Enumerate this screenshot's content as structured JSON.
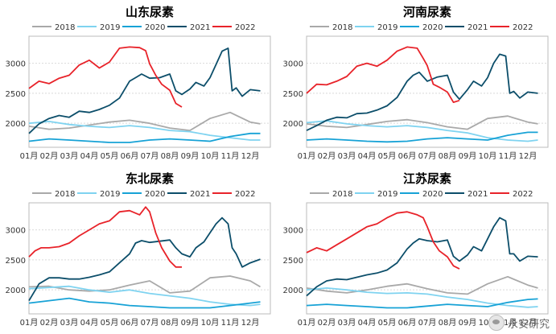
{
  "months": [
    "01月",
    "02月",
    "03月",
    "04月",
    "05月",
    "06月",
    "07月",
    "08月",
    "09月",
    "10月",
    "11月",
    "12月"
  ],
  "legend": [
    "2018",
    "2019",
    "2020",
    "2021",
    "2022"
  ],
  "colors": {
    "2018": "#a9a9a9",
    "2019": "#7fd3f0",
    "2020": "#17a2d6",
    "2021": "#0c4e6a",
    "2022": "#e8232a"
  },
  "watermark": "永安研究",
  "chart_data": [
    {
      "type": "line",
      "title": "山东尿素",
      "ylim": [
        1600,
        3450
      ],
      "yticks": [
        2000,
        2500,
        3000
      ],
      "series": [
        {
          "name": "2018",
          "x": [
            0,
            1,
            2,
            3,
            4,
            5,
            6,
            7,
            8,
            9,
            10,
            11,
            11.5
          ],
          "values": [
            1950,
            1900,
            1920,
            1970,
            2020,
            2050,
            2000,
            1920,
            1880,
            2080,
            2180,
            2020,
            1990
          ]
        },
        {
          "name": "2019",
          "x": [
            0,
            1,
            2,
            3,
            4,
            5,
            6,
            7,
            8,
            9,
            10,
            11,
            11.5
          ],
          "values": [
            2000,
            2030,
            1980,
            1950,
            1930,
            1960,
            1930,
            1880,
            1860,
            1800,
            1760,
            1720,
            1720
          ]
        },
        {
          "name": "2020",
          "x": [
            0,
            1,
            2,
            3,
            4,
            5,
            6,
            7,
            8,
            9,
            10,
            11,
            11.5
          ],
          "values": [
            1700,
            1740,
            1720,
            1700,
            1680,
            1680,
            1720,
            1740,
            1720,
            1700,
            1780,
            1830,
            1830
          ]
        },
        {
          "name": "2021",
          "x": [
            0,
            0.5,
            1,
            1.5,
            2,
            2.5,
            3,
            3.5,
            4,
            4.5,
            5,
            5.3,
            5.6,
            6,
            6.5,
            7,
            7.3,
            7.6,
            8,
            8.3,
            8.7,
            9,
            9.3,
            9.6,
            9.9,
            10.1,
            10.3,
            10.6,
            11,
            11.5
          ],
          "values": [
            1830,
            1990,
            2080,
            2130,
            2100,
            2200,
            2180,
            2230,
            2300,
            2420,
            2700,
            2760,
            2820,
            2750,
            2760,
            2820,
            2540,
            2480,
            2570,
            2680,
            2620,
            2760,
            2980,
            3200,
            3250,
            2540,
            2590,
            2450,
            2560,
            2540
          ]
        },
        {
          "name": "2022",
          "x": [
            0,
            0.5,
            1,
            1.5,
            2,
            2.5,
            3,
            3.5,
            4,
            4.5,
            5,
            5.5,
            5.8,
            6,
            6.3,
            6.6,
            7,
            7.3,
            7.6
          ],
          "values": [
            2580,
            2700,
            2660,
            2750,
            2800,
            2970,
            3050,
            2920,
            3020,
            3250,
            3270,
            3260,
            3210,
            2990,
            2800,
            2650,
            2550,
            2330,
            2270
          ]
        }
      ]
    },
    {
      "type": "line",
      "title": "河南尿素",
      "ylim": [
        1600,
        3450
      ],
      "yticks": [
        2000,
        2500,
        3000
      ],
      "series": [
        {
          "name": "2018",
          "x": [
            0,
            1,
            2,
            3,
            4,
            5,
            6,
            7,
            8,
            9,
            10,
            11,
            11.5
          ],
          "values": [
            1990,
            1950,
            1930,
            1980,
            2030,
            2060,
            2010,
            1940,
            1900,
            2080,
            2120,
            2020,
            1990
          ]
        },
        {
          "name": "2019",
          "x": [
            0,
            1,
            2,
            3,
            4,
            5,
            6,
            7,
            8,
            9,
            10,
            11,
            11.5
          ],
          "values": [
            2010,
            2040,
            1990,
            1960,
            1940,
            1960,
            1930,
            1880,
            1840,
            1760,
            1720,
            1700,
            1720
          ]
        },
        {
          "name": "2020",
          "x": [
            0,
            1,
            2,
            3,
            4,
            5,
            6,
            7,
            8,
            9,
            10,
            11,
            11.5
          ],
          "values": [
            1720,
            1740,
            1720,
            1700,
            1690,
            1700,
            1740,
            1760,
            1740,
            1720,
            1800,
            1850,
            1850
          ]
        },
        {
          "name": "2021",
          "x": [
            0,
            0.5,
            1,
            1.5,
            2,
            2.5,
            3,
            3.5,
            4,
            4.5,
            5,
            5.3,
            5.6,
            6,
            6.5,
            7,
            7.3,
            7.6,
            8,
            8.3,
            8.7,
            9,
            9.3,
            9.6,
            9.9,
            10.1,
            10.3,
            10.6,
            11,
            11.5
          ],
          "values": [
            1880,
            1960,
            2050,
            2100,
            2090,
            2160,
            2170,
            2220,
            2290,
            2430,
            2700,
            2800,
            2850,
            2700,
            2770,
            2800,
            2520,
            2400,
            2560,
            2700,
            2620,
            2760,
            3000,
            3150,
            3120,
            2500,
            2530,
            2420,
            2520,
            2500
          ]
        },
        {
          "name": "2022",
          "x": [
            0,
            0.5,
            1,
            1.5,
            2,
            2.5,
            3,
            3.5,
            4,
            4.5,
            5,
            5.5,
            5.8,
            6,
            6.3,
            6.6,
            7,
            7.3,
            7.6
          ],
          "values": [
            2500,
            2650,
            2640,
            2700,
            2780,
            2950,
            3000,
            2950,
            3050,
            3200,
            3270,
            3250,
            3080,
            2960,
            2650,
            2600,
            2520,
            2350,
            2380
          ]
        }
      ]
    },
    {
      "type": "line",
      "title": "东北尿素",
      "ylim": [
        1600,
        3450
      ],
      "yticks": [
        2000,
        2500,
        3000
      ],
      "series": [
        {
          "name": "2018",
          "x": [
            0,
            1,
            2,
            3,
            4,
            5,
            6,
            7,
            8,
            9,
            10,
            11,
            11.5
          ],
          "values": [
            2050,
            2060,
            2000,
            1980,
            2000,
            2080,
            2150,
            1950,
            1980,
            2200,
            2230,
            2150,
            2050
          ]
        },
        {
          "name": "2019",
          "x": [
            0,
            1,
            2,
            3,
            4,
            5,
            6,
            7,
            8,
            9,
            10,
            11,
            11.5
          ],
          "values": [
            2020,
            2040,
            2060,
            2000,
            1960,
            2000,
            1940,
            1900,
            1860,
            1800,
            1760,
            1740,
            1760
          ]
        },
        {
          "name": "2020",
          "x": [
            0,
            1,
            2,
            3,
            4,
            5,
            6,
            7,
            8,
            9,
            10,
            11,
            11.5
          ],
          "values": [
            1780,
            1820,
            1860,
            1800,
            1780,
            1740,
            1720,
            1700,
            1700,
            1700,
            1740,
            1780,
            1800
          ]
        },
        {
          "name": "2021",
          "x": [
            0,
            0.5,
            1,
            1.5,
            2,
            2.5,
            3,
            3.5,
            4,
            4.5,
            5,
            5.3,
            5.6,
            6,
            6.5,
            7,
            7.3,
            7.6,
            8,
            8.3,
            8.7,
            9,
            9.3,
            9.6,
            9.9,
            10.1,
            10.3,
            10.6,
            11,
            11.5
          ],
          "values": [
            1820,
            2100,
            2200,
            2200,
            2180,
            2180,
            2210,
            2250,
            2300,
            2450,
            2600,
            2780,
            2820,
            2790,
            2810,
            2830,
            2700,
            2600,
            2550,
            2700,
            2800,
            2950,
            3100,
            3200,
            3100,
            2700,
            2600,
            2380,
            2450,
            2510
          ]
        },
        {
          "name": "2022",
          "x": [
            0,
            0.3,
            0.6,
            1,
            1.5,
            2,
            2.5,
            3,
            3.5,
            4,
            4.5,
            5,
            5.5,
            5.8,
            6,
            6.3,
            6.6,
            7,
            7.3,
            7.6
          ],
          "values": [
            2550,
            2650,
            2700,
            2700,
            2720,
            2780,
            2900,
            3000,
            3100,
            3150,
            3300,
            3320,
            3250,
            3380,
            3300,
            2950,
            2700,
            2480,
            2380,
            2380
          ]
        }
      ]
    },
    {
      "type": "line",
      "title": "江苏尿素",
      "ylim": [
        1600,
        3450
      ],
      "yticks": [
        2000,
        2500,
        3000
      ],
      "series": [
        {
          "name": "2018",
          "x": [
            0,
            1,
            2,
            3,
            4,
            5,
            6,
            7,
            8,
            9,
            10,
            11,
            11.5
          ],
          "values": [
            2030,
            1980,
            1950,
            2000,
            2060,
            2100,
            2020,
            1950,
            1930,
            2100,
            2220,
            2080,
            2030
          ]
        },
        {
          "name": "2019",
          "x": [
            0,
            1,
            2,
            3,
            4,
            5,
            6,
            7,
            8,
            9,
            10,
            11,
            11.5
          ],
          "values": [
            2000,
            2030,
            2000,
            1960,
            1940,
            1950,
            1930,
            1880,
            1840,
            1780,
            1740,
            1710,
            1720
          ]
        },
        {
          "name": "2020",
          "x": [
            0,
            1,
            2,
            3,
            4,
            5,
            6,
            7,
            8,
            9,
            10,
            11,
            11.5
          ],
          "values": [
            1740,
            1760,
            1740,
            1720,
            1700,
            1700,
            1730,
            1760,
            1740,
            1720,
            1790,
            1840,
            1850
          ]
        },
        {
          "name": "2021",
          "x": [
            0,
            0.5,
            1,
            1.5,
            2,
            2.5,
            3,
            3.5,
            4,
            4.5,
            5,
            5.3,
            5.6,
            6,
            6.5,
            7,
            7.3,
            7.6,
            8,
            8.3,
            8.7,
            9,
            9.3,
            9.6,
            9.9,
            10.1,
            10.3,
            10.6,
            11,
            11.5
          ],
          "values": [
            1900,
            2050,
            2150,
            2180,
            2170,
            2210,
            2250,
            2280,
            2330,
            2450,
            2680,
            2780,
            2850,
            2820,
            2800,
            2830,
            2560,
            2480,
            2580,
            2720,
            2650,
            2850,
            3050,
            3200,
            3150,
            2600,
            2600,
            2480,
            2560,
            2550
          ]
        },
        {
          "name": "2022",
          "x": [
            0,
            0.5,
            1,
            1.5,
            2,
            2.5,
            3,
            3.5,
            4,
            4.5,
            5,
            5.5,
            5.8,
            6,
            6.3,
            6.6,
            7,
            7.3,
            7.6
          ],
          "values": [
            2620,
            2700,
            2650,
            2750,
            2850,
            2950,
            3050,
            3100,
            3200,
            3280,
            3300,
            3250,
            3200,
            3050,
            2800,
            2650,
            2550,
            2400,
            2350
          ]
        }
      ]
    }
  ]
}
